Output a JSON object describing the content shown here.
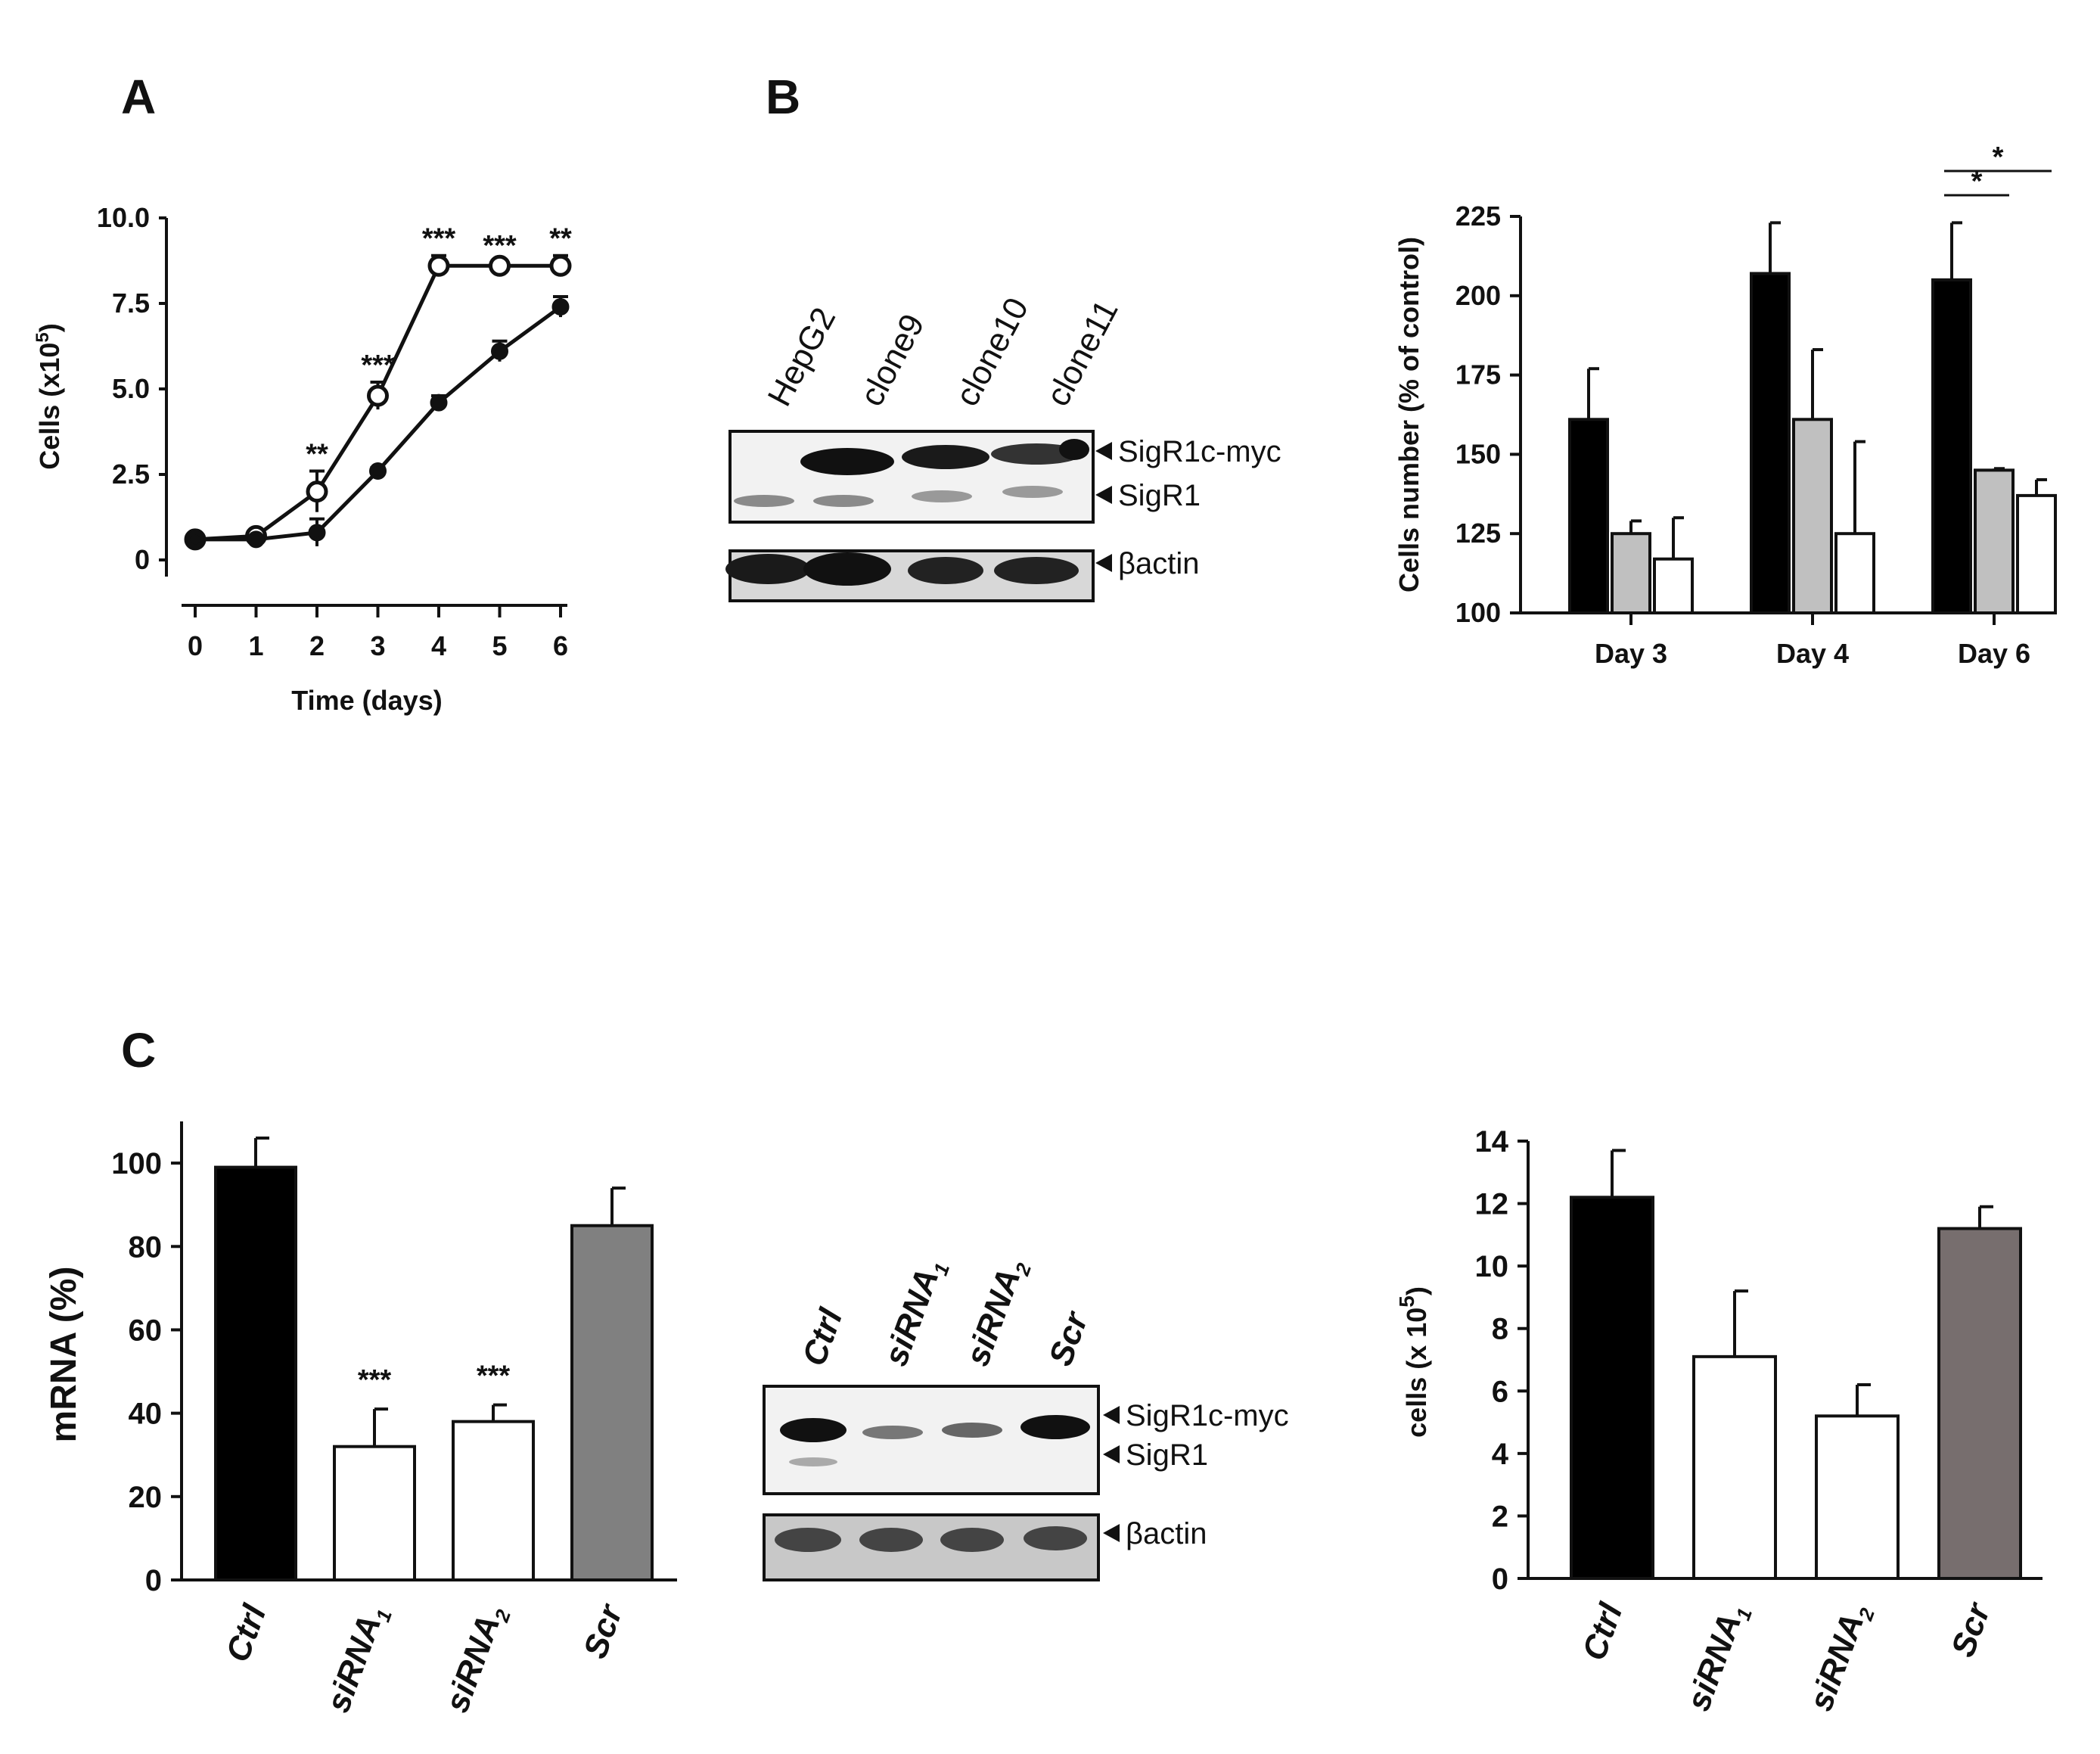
{
  "panels": {
    "a": "A",
    "b": "B",
    "c": "C"
  },
  "chart_data": [
    {
      "id": "A",
      "type": "line",
      "xlabel": "Time (days)",
      "ylabel_base": "Cells (x10",
      "ylabel_exp": "5",
      "ylabel_end": ")",
      "x_ticks": [
        "0",
        "1",
        "2",
        "3",
        "4",
        "5",
        "6"
      ],
      "y_ticks": [
        "0",
        "2.5",
        "5.0",
        "7.5",
        "10.0"
      ],
      "xlim": [
        0,
        6
      ],
      "ylim": [
        0,
        10
      ],
      "series": [
        {
          "marker": "open-circle",
          "x": [
            0,
            1,
            2,
            3,
            4,
            5,
            6
          ],
          "y": [
            0.6,
            0.7,
            2.0,
            4.8,
            8.6,
            8.6,
            8.6
          ],
          "err": [
            0.1,
            0.1,
            0.6,
            0.4,
            0.3,
            0.1,
            0.3
          ]
        },
        {
          "marker": "filled-circle",
          "x": [
            0,
            1,
            2,
            3,
            4,
            5,
            6
          ],
          "y": [
            0.6,
            0.6,
            0.8,
            2.6,
            4.6,
            6.1,
            7.4
          ],
          "err": [
            0.1,
            0.1,
            0.4,
            0.1,
            0.2,
            0.3,
            0.3
          ]
        }
      ],
      "annotations": [
        {
          "x": 2,
          "text": "**"
        },
        {
          "x": 3,
          "text": "***"
        },
        {
          "x": 4,
          "text": "***"
        },
        {
          "x": 5,
          "text": "***"
        },
        {
          "x": 6,
          "text": "**"
        }
      ]
    },
    {
      "id": "B-blot",
      "type": "other",
      "lanes": [
        "HepG2",
        "clone9",
        "clone10",
        "clone11"
      ],
      "bands": [
        "SigR1c-myc",
        "SigR1",
        "βactin"
      ]
    },
    {
      "id": "B-bar",
      "type": "bar",
      "ylabel": "Cells number (% of control)",
      "categories": [
        "Day 3",
        "Day 4",
        "Day 6"
      ],
      "y_ticks": [
        "100",
        "125",
        "150",
        "175",
        "200",
        "225"
      ],
      "ylim": [
        100,
        225
      ],
      "series": [
        {
          "color": "#000000",
          "values": [
            161,
            207,
            205
          ],
          "err": [
            16,
            16,
            18
          ]
        },
        {
          "color": "#c0c0c0",
          "values": [
            125,
            161,
            145
          ],
          "err": [
            4,
            22,
            0.5
          ]
        },
        {
          "color": "#ffffff",
          "values": [
            117,
            125,
            137
          ],
          "err": [
            13,
            29,
            5
          ]
        }
      ],
      "significance": [
        {
          "text": "*",
          "from": [
            2,
            0
          ],
          "to": [
            2,
            1
          ]
        },
        {
          "text": "*",
          "from": [
            2,
            0
          ],
          "to": [
            2,
            2
          ]
        }
      ]
    },
    {
      "id": "C-mrna",
      "type": "bar",
      "ylabel": "mRNA (%)",
      "categories": [
        {
          "base": "Ctrl",
          "sub": ""
        },
        {
          "base": "siRNA",
          "sub": "1"
        },
        {
          "base": "siRNA",
          "sub": "2"
        },
        {
          "base": "Scr",
          "sub": ""
        }
      ],
      "y_ticks": [
        "0",
        "20",
        "40",
        "60",
        "80",
        "100"
      ],
      "ylim": [
        0,
        110
      ],
      "values": [
        99,
        32,
        38,
        85
      ],
      "err": [
        7,
        9,
        4,
        9
      ],
      "colors": [
        "#000000",
        "#ffffff",
        "#ffffff",
        "#808080"
      ],
      "annotations": [
        "",
        "***",
        "***",
        ""
      ]
    },
    {
      "id": "C-blot",
      "type": "other",
      "lanes": [
        {
          "base": "Ctrl",
          "sub": ""
        },
        {
          "base": "siRNA",
          "sub": "1"
        },
        {
          "base": "siRNA",
          "sub": "2"
        },
        {
          "base": "Scr",
          "sub": ""
        }
      ],
      "bands": [
        "SigR1c-myc",
        "SigR1",
        "βactin"
      ]
    },
    {
      "id": "C-cells",
      "type": "bar",
      "ylabel_base": "cells (x 10",
      "ylabel_exp": "5",
      "ylabel_end": ")",
      "categories": [
        {
          "base": "Ctrl",
          "sub": ""
        },
        {
          "base": "siRNA",
          "sub": "1"
        },
        {
          "base": "siRNA",
          "sub": "2"
        },
        {
          "base": "Scr",
          "sub": ""
        }
      ],
      "y_ticks": [
        "0",
        "2",
        "4",
        "6",
        "8",
        "10",
        "12",
        "14"
      ],
      "ylim": [
        0,
        14
      ],
      "values": [
        12.2,
        7.1,
        5.2,
        11.2
      ],
      "err": [
        1.5,
        2.1,
        1.0,
        0.7
      ],
      "colors": [
        "#000000",
        "#ffffff",
        "#ffffff",
        "#776e6e"
      ]
    }
  ]
}
